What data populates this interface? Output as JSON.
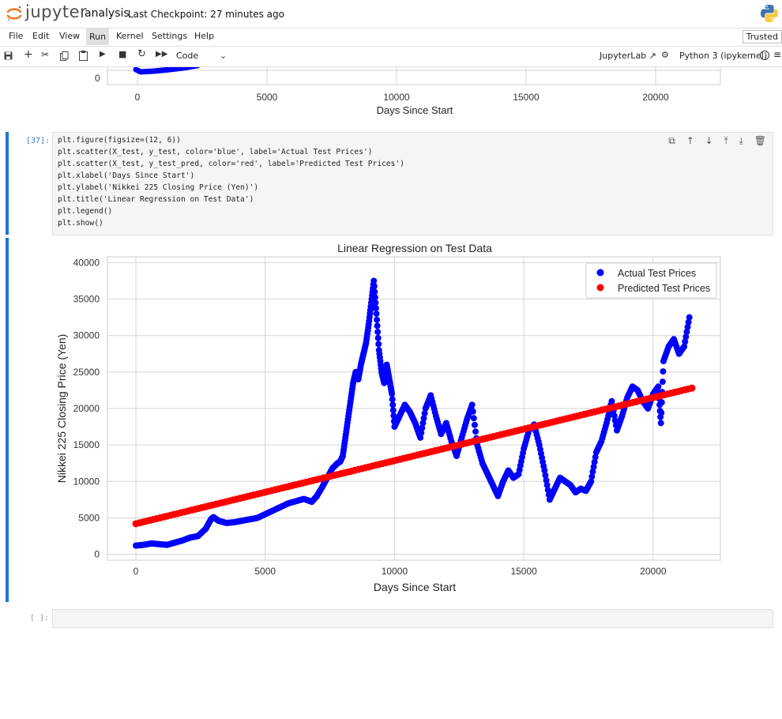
{
  "app": {
    "logo_text": "jupyter",
    "notebook_name": "analysis",
    "checkpoint": "Last Checkpoint: 27 minutes ago"
  },
  "menu": [
    "File",
    "Edit",
    "View",
    "Run",
    "Kernel",
    "Settings",
    "Help"
  ],
  "trusted_label": "Trusted",
  "toolbar": {
    "cell_type": "Code",
    "jupyterlab_label": "JupyterLab",
    "kernel_name": "Python 3 (ipykernel)"
  },
  "prev_plot": {
    "xlabel": "Days Since Start",
    "ytick0": "0",
    "xticks": [
      "0",
      "5000",
      "10000",
      "15000",
      "20000"
    ]
  },
  "cell": {
    "prompt": "[37]:",
    "code_lines": [
      "plt.figure(figsize=(12, 6))",
      "plt.scatter(X_test, y_test, color='blue', label='Actual Test Prices')",
      "plt.scatter(X_test, y_test_pred, color='red', label='Predicted Test Prices')",
      "plt.xlabel('Days Since Start')",
      "plt.ylabel('Nikkei 225 Closing Price (Yen)')",
      "plt.title('Linear Regression on Test Data')",
      "plt.legend()",
      "plt.show()"
    ]
  },
  "empty_prompt": "[ ]:",
  "chart_data": {
    "type": "scatter",
    "title": "Linear Regression on Test Data",
    "xlabel": "Days Since Start",
    "ylabel": "Nikkei 225 Closing Price (Yen)",
    "xlim": [
      -1100,
      22600
    ],
    "ylim": [
      -800,
      40800
    ],
    "xticks": [
      0,
      5000,
      10000,
      15000,
      20000
    ],
    "yticks": [
      0,
      5000,
      10000,
      15000,
      20000,
      25000,
      30000,
      35000,
      40000
    ],
    "grid": true,
    "legend_position": "top-right",
    "colors": {
      "actual": "#0000ff",
      "predicted": "#ff0000"
    },
    "series": [
      {
        "name": "Actual Test Prices",
        "x": [
          0,
          300,
          600,
          900,
          1200,
          1500,
          1800,
          2100,
          2400,
          2700,
          2900,
          3000,
          3200,
          3500,
          3800,
          4100,
          4400,
          4700,
          5000,
          5300,
          5600,
          5900,
          6200,
          6500,
          6800,
          7000,
          7200,
          7400,
          7600,
          7800,
          7900,
          8000,
          8100,
          8200,
          8300,
          8400,
          8500,
          8600,
          8700,
          8800,
          8900,
          9000,
          9100,
          9200,
          9300,
          9400,
          9500,
          9600,
          9700,
          9800,
          9900,
          10000,
          10200,
          10400,
          10600,
          10800,
          11000,
          11200,
          11400,
          11600,
          11800,
          12000,
          12200,
          12400,
          12600,
          12800,
          13000,
          13200,
          13400,
          13600,
          13800,
          14000,
          14200,
          14400,
          14600,
          14800,
          15000,
          15200,
          15400,
          15600,
          15800,
          16000,
          16200,
          16400,
          16600,
          16800,
          17000,
          17200,
          17400,
          17600,
          17800,
          18000,
          18200,
          18400,
          18600,
          18800,
          19000,
          19200,
          19400,
          19600,
          19800,
          20000,
          20200,
          20300,
          20400,
          20600,
          20800,
          21000,
          21200,
          21400
        ],
        "y": [
          1200,
          1300,
          1500,
          1400,
          1300,
          1600,
          1900,
          2300,
          2500,
          3500,
          4800,
          5100,
          4600,
          4300,
          4400,
          4600,
          4800,
          5000,
          5500,
          6000,
          6500,
          7000,
          7300,
          7600,
          7200,
          8000,
          9200,
          10500,
          11800,
          12500,
          12700,
          13500,
          16000,
          18500,
          21000,
          23500,
          25000,
          24000,
          26000,
          27500,
          29000,
          31500,
          34500,
          37500,
          33000,
          28000,
          25000,
          23500,
          26000,
          24000,
          22000,
          17500,
          19000,
          20500,
          19500,
          18000,
          16000,
          20000,
          21800,
          19000,
          16500,
          18000,
          15500,
          13500,
          16000,
          18500,
          20500,
          15000,
          12500,
          11000,
          9500,
          8000,
          10000,
          11500,
          10500,
          11000,
          14500,
          17000,
          17800,
          15000,
          11500,
          7500,
          9000,
          10500,
          10000,
          9500,
          8500,
          9000,
          8700,
          10000,
          14000,
          15500,
          18000,
          21000,
          17000,
          19000,
          21500,
          23000,
          22500,
          21000,
          20000,
          22000,
          23000,
          18000,
          26500,
          28500,
          29500,
          27500,
          28500,
          32500
        ]
      },
      {
        "name": "Predicted Test Prices",
        "x": [
          0,
          21500
        ],
        "y": [
          4200,
          22800
        ]
      }
    ]
  }
}
